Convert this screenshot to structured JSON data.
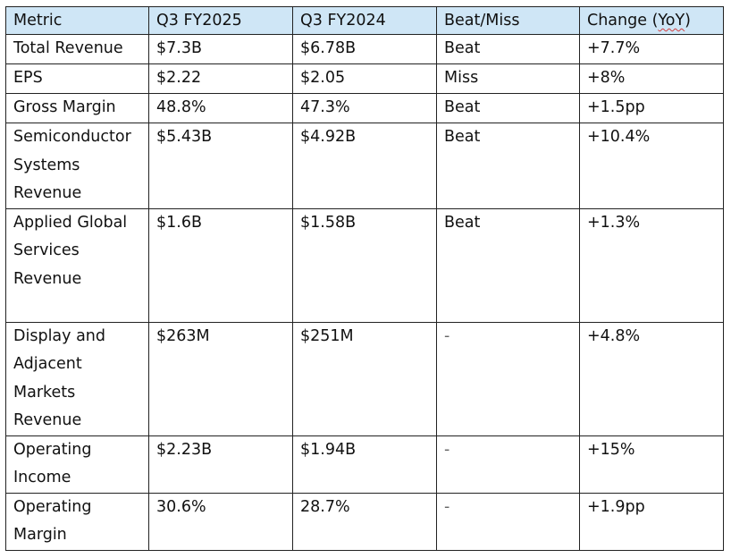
{
  "table": {
    "headers": [
      "Metric",
      "Q3 FY2025",
      "Q3 FY2024",
      "Beat/Miss",
      "Change (",
      "YoY",
      ")"
    ],
    "rows": [
      {
        "metric": "Total Revenue",
        "fy2025": "$7.3B",
        "fy2024": "$6.78B",
        "beat_miss": "Beat",
        "change": "+7.7%"
      },
      {
        "metric": "EPS",
        "fy2025": "$2.22",
        "fy2024": "$2.05",
        "beat_miss": "Miss",
        "change": "+8%"
      },
      {
        "metric": "Gross Margin",
        "fy2025": "48.8%",
        "fy2024": "47.3%",
        "beat_miss": "Beat",
        "change": "+1.5pp"
      },
      {
        "metric": "Semiconductor Systems Revenue",
        "fy2025": "$5.43B",
        "fy2024": "$4.92B",
        "beat_miss": "Beat",
        "change": "+10.4%"
      },
      {
        "metric": "Applied Global Services Revenue",
        "fy2025": "$1.6B",
        "fy2024": "$1.58B",
        "beat_miss": "Beat",
        "change": "+1.3%"
      },
      {
        "metric": "Display and Adjacent Markets Revenue",
        "fy2025": "$263M",
        "fy2024": "$251M",
        "beat_miss": "-",
        "change": "+4.8%"
      },
      {
        "metric": "Operating Income",
        "fy2025": "$2.23B",
        "fy2024": "$1.94B",
        "beat_miss": "-",
        "change": "+15%"
      },
      {
        "metric": "Operating Margin",
        "fy2025": "30.6%",
        "fy2024": "28.7%",
        "beat_miss": "-",
        "change": "+1.9pp"
      }
    ]
  }
}
